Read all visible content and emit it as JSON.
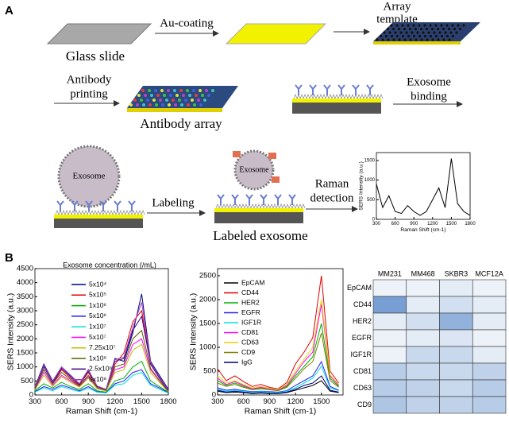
{
  "panel_a": {
    "label": "A",
    "glass_slide": "Glass slide",
    "au_coating": "Au-coating",
    "array_template": [
      "Array",
      "template"
    ],
    "antibody_printing": [
      "Antibody",
      "printing"
    ],
    "antibody_array": "Antibody array",
    "exosome_binding": [
      "Exosome",
      "binding"
    ],
    "exosome_labels": [
      "Exosome",
      "Exosome"
    ],
    "labeling": "Labeling",
    "raman_detection": [
      "Raman",
      "detection"
    ],
    "labeled_exosome": "Labeled exosome"
  },
  "panel_b": {
    "label": "B"
  },
  "chart_data": [
    {
      "type": "line",
      "xlabel": "Raman Shift (cm-1)",
      "ylabel": "SERS Intensity (a.u.)",
      "x": [
        300,
        400,
        500,
        600,
        700,
        800,
        900,
        1000,
        1100,
        1200,
        1300,
        1400,
        1500,
        1600,
        1700,
        1800
      ],
      "xlim": [
        300,
        1800
      ],
      "xticks": [
        300,
        600,
        900,
        1200,
        1500,
        1800
      ],
      "ylim": [
        0,
        1700
      ],
      "yticks": [
        0,
        500,
        1000,
        1500
      ],
      "series": [
        {
          "color": "#000000",
          "values": [
            900,
            300,
            600,
            200,
            150,
            350,
            200,
            100,
            200,
            500,
            800,
            300,
            1550,
            400,
            200,
            100
          ]
        }
      ]
    },
    {
      "type": "line",
      "legend_title": "Exosome concentration (/mL)",
      "xlabel": "Raman Shift (cm-1)",
      "ylabel": "SERS Intensity (a.u.)",
      "x": [
        300,
        400,
        500,
        600,
        700,
        800,
        900,
        1000,
        1100,
        1200,
        1300,
        1400,
        1500,
        1600,
        1700,
        1800
      ],
      "xlim": [
        300,
        1800
      ],
      "xticks": [
        300,
        600,
        900,
        1200,
        1500,
        1800
      ],
      "ylim": [
        0,
        4500
      ],
      "yticks": [
        0,
        500,
        1000,
        1500,
        2000,
        2500,
        3000,
        3500,
        4000,
        4500
      ],
      "series": [
        {
          "name": "5x10⁴",
          "color": "#000080",
          "values": [
            300,
            1100,
            500,
            1000,
            700,
            400,
            900,
            300,
            200,
            1300,
            1200,
            2200,
            3600,
            1200,
            700,
            200
          ]
        },
        {
          "name": "5x10⁵",
          "color": "#e00000",
          "values": [
            250,
            900,
            400,
            900,
            600,
            350,
            800,
            300,
            200,
            1100,
            1500,
            2600,
            3000,
            1100,
            600,
            150
          ]
        },
        {
          "name": "1x10⁶",
          "color": "#00b000",
          "values": [
            150,
            400,
            250,
            450,
            300,
            200,
            400,
            150,
            100,
            500,
            600,
            1000,
            1200,
            500,
            300,
            100
          ]
        },
        {
          "name": "5x10⁶",
          "color": "#2020ff",
          "values": [
            120,
            300,
            200,
            350,
            250,
            150,
            300,
            120,
            80,
            400,
            500,
            800,
            900,
            400,
            250,
            80
          ]
        },
        {
          "name": "1x10⁷",
          "color": "#00e0e0",
          "values": [
            100,
            250,
            150,
            300,
            200,
            120,
            250,
            100,
            70,
            350,
            400,
            700,
            800,
            350,
            200,
            70
          ]
        },
        {
          "name": "5x10⁷",
          "color": "#ff00ff",
          "values": [
            200,
            800,
            350,
            700,
            500,
            300,
            650,
            250,
            150,
            900,
            1000,
            1800,
            2000,
            900,
            500,
            120
          ]
        },
        {
          "name": "7.25x10⁷",
          "color": "#c0c000",
          "values": [
            180,
            700,
            300,
            650,
            450,
            280,
            600,
            220,
            140,
            800,
            900,
            1600,
            1800,
            800,
            450,
            110
          ]
        },
        {
          "name": "1x10⁸",
          "color": "#606000",
          "values": [
            220,
            900,
            400,
            800,
            550,
            320,
            700,
            260,
            170,
            1000,
            1100,
            2000,
            2300,
            950,
            520,
            130
          ]
        },
        {
          "name": "2.5x10⁸",
          "color": "#400080",
          "values": [
            260,
            1000,
            450,
            950,
            650,
            380,
            850,
            300,
            190,
            1200,
            1300,
            2300,
            2800,
            1100,
            600,
            150
          ]
        },
        {
          "name": "5x10⁸",
          "color": "#a040c0",
          "values": [
            280,
            1050,
            480,
            1000,
            680,
            400,
            880,
            320,
            200,
            1250,
            1350,
            2400,
            3300,
            1150,
            650,
            160
          ]
        }
      ]
    },
    {
      "type": "line",
      "xlabel": "Raman Shift (cm-1)",
      "ylabel": "SERS Intensity (a.u.)",
      "x": [
        300,
        400,
        500,
        600,
        700,
        800,
        900,
        1000,
        1100,
        1200,
        1300,
        1400,
        1500,
        1600,
        1700
      ],
      "xlim": [
        300,
        1750
      ],
      "xticks": [
        300,
        600,
        900,
        1200,
        1500
      ],
      "ylim": [
        0,
        2650
      ],
      "yticks": [
        0,
        500,
        1000,
        1500,
        2000,
        2500
      ],
      "series": [
        {
          "name": "EpCAM",
          "color": "#000000",
          "values": [
            80,
            50,
            60,
            50,
            30,
            40,
            30,
            30,
            50,
            100,
            150,
            200,
            300,
            80,
            50
          ]
        },
        {
          "name": "CD44",
          "color": "#e00000",
          "values": [
            550,
            300,
            400,
            280,
            180,
            220,
            160,
            130,
            260,
            650,
            900,
            1200,
            2500,
            500,
            250
          ]
        },
        {
          "name": "HER2",
          "color": "#00b000",
          "values": [
            300,
            200,
            250,
            180,
            120,
            150,
            120,
            100,
            180,
            400,
            600,
            800,
            1500,
            350,
            180
          ]
        },
        {
          "name": "EGFR",
          "color": "#2020ff",
          "values": [
            150,
            100,
            120,
            90,
            70,
            80,
            70,
            60,
            90,
            200,
            300,
            400,
            700,
            180,
            100
          ]
        },
        {
          "name": "IGF1R",
          "color": "#00e0e0",
          "values": [
            120,
            80,
            100,
            80,
            60,
            70,
            60,
            50,
            80,
            150,
            250,
            350,
            600,
            150,
            90
          ]
        },
        {
          "name": "CD81",
          "color": "#ff00ff",
          "values": [
            350,
            220,
            280,
            200,
            130,
            160,
            130,
            110,
            200,
            450,
            700,
            900,
            1900,
            400,
            200
          ]
        },
        {
          "name": "CD63",
          "color": "#e8d000",
          "values": [
            400,
            250,
            300,
            220,
            150,
            180,
            140,
            120,
            220,
            500,
            750,
            1000,
            2000,
            420,
            220
          ]
        },
        {
          "name": "CD9",
          "color": "#808000",
          "values": [
            250,
            180,
            220,
            160,
            110,
            130,
            110,
            90,
            160,
            350,
            550,
            700,
            1300,
            300,
            160
          ]
        },
        {
          "name": "IgG",
          "color": "#000080",
          "values": [
            100,
            60,
            80,
            60,
            40,
            50,
            40,
            35,
            60,
            120,
            200,
            250,
            400,
            100,
            60
          ]
        }
      ]
    },
    {
      "type": "heatmap",
      "columns": [
        "MM231",
        "MM468",
        "SKBR3",
        "MCF12A"
      ],
      "rows": [
        "EpCAM",
        "CD44",
        "HER2",
        "EGFR",
        "IGF1R",
        "CD81",
        "CD63",
        "CD9"
      ],
      "colormap": [
        "#ffffff",
        "#4a7fc4"
      ],
      "values": [
        [
          0.1,
          0.1,
          0.15,
          0.1
        ],
        [
          0.75,
          0.15,
          0.25,
          0.15
        ],
        [
          0.15,
          0.25,
          0.6,
          0.15
        ],
        [
          0.1,
          0.15,
          0.2,
          0.1
        ],
        [
          0.1,
          0.3,
          0.3,
          0.15
        ],
        [
          0.4,
          0.3,
          0.3,
          0.35
        ],
        [
          0.4,
          0.35,
          0.3,
          0.4
        ],
        [
          0.45,
          0.35,
          0.35,
          0.4
        ]
      ]
    }
  ]
}
